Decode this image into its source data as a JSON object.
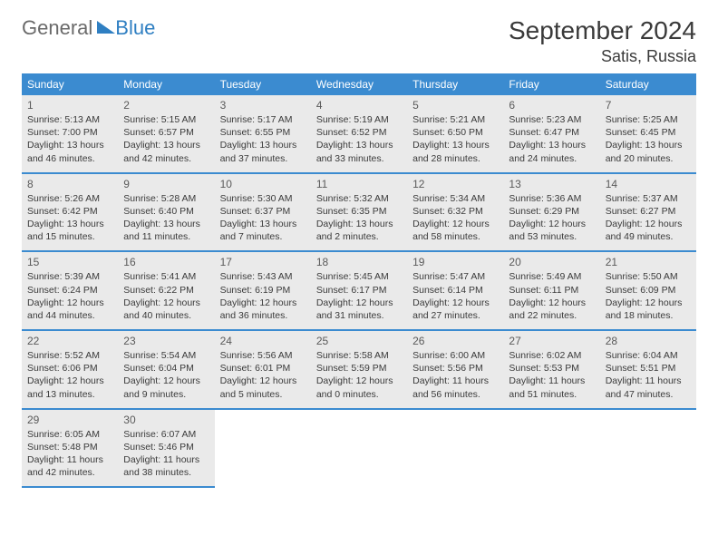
{
  "logo": {
    "general": "General",
    "blue": "Blue"
  },
  "header": {
    "title": "September 2024",
    "location": "Satis, Russia"
  },
  "weekdays": [
    "Sunday",
    "Monday",
    "Tuesday",
    "Wednesday",
    "Thursday",
    "Friday",
    "Saturday"
  ],
  "weeks": [
    [
      {
        "day": "1",
        "sunrise": "Sunrise: 5:13 AM",
        "sunset": "Sunset: 7:00 PM",
        "daylight1": "Daylight: 13 hours",
        "daylight2": "and 46 minutes."
      },
      {
        "day": "2",
        "sunrise": "Sunrise: 5:15 AM",
        "sunset": "Sunset: 6:57 PM",
        "daylight1": "Daylight: 13 hours",
        "daylight2": "and 42 minutes."
      },
      {
        "day": "3",
        "sunrise": "Sunrise: 5:17 AM",
        "sunset": "Sunset: 6:55 PM",
        "daylight1": "Daylight: 13 hours",
        "daylight2": "and 37 minutes."
      },
      {
        "day": "4",
        "sunrise": "Sunrise: 5:19 AM",
        "sunset": "Sunset: 6:52 PM",
        "daylight1": "Daylight: 13 hours",
        "daylight2": "and 33 minutes."
      },
      {
        "day": "5",
        "sunrise": "Sunrise: 5:21 AM",
        "sunset": "Sunset: 6:50 PM",
        "daylight1": "Daylight: 13 hours",
        "daylight2": "and 28 minutes."
      },
      {
        "day": "6",
        "sunrise": "Sunrise: 5:23 AM",
        "sunset": "Sunset: 6:47 PM",
        "daylight1": "Daylight: 13 hours",
        "daylight2": "and 24 minutes."
      },
      {
        "day": "7",
        "sunrise": "Sunrise: 5:25 AM",
        "sunset": "Sunset: 6:45 PM",
        "daylight1": "Daylight: 13 hours",
        "daylight2": "and 20 minutes."
      }
    ],
    [
      {
        "day": "8",
        "sunrise": "Sunrise: 5:26 AM",
        "sunset": "Sunset: 6:42 PM",
        "daylight1": "Daylight: 13 hours",
        "daylight2": "and 15 minutes."
      },
      {
        "day": "9",
        "sunrise": "Sunrise: 5:28 AM",
        "sunset": "Sunset: 6:40 PM",
        "daylight1": "Daylight: 13 hours",
        "daylight2": "and 11 minutes."
      },
      {
        "day": "10",
        "sunrise": "Sunrise: 5:30 AM",
        "sunset": "Sunset: 6:37 PM",
        "daylight1": "Daylight: 13 hours",
        "daylight2": "and 7 minutes."
      },
      {
        "day": "11",
        "sunrise": "Sunrise: 5:32 AM",
        "sunset": "Sunset: 6:35 PM",
        "daylight1": "Daylight: 13 hours",
        "daylight2": "and 2 minutes."
      },
      {
        "day": "12",
        "sunrise": "Sunrise: 5:34 AM",
        "sunset": "Sunset: 6:32 PM",
        "daylight1": "Daylight: 12 hours",
        "daylight2": "and 58 minutes."
      },
      {
        "day": "13",
        "sunrise": "Sunrise: 5:36 AM",
        "sunset": "Sunset: 6:29 PM",
        "daylight1": "Daylight: 12 hours",
        "daylight2": "and 53 minutes."
      },
      {
        "day": "14",
        "sunrise": "Sunrise: 5:37 AM",
        "sunset": "Sunset: 6:27 PM",
        "daylight1": "Daylight: 12 hours",
        "daylight2": "and 49 minutes."
      }
    ],
    [
      {
        "day": "15",
        "sunrise": "Sunrise: 5:39 AM",
        "sunset": "Sunset: 6:24 PM",
        "daylight1": "Daylight: 12 hours",
        "daylight2": "and 44 minutes."
      },
      {
        "day": "16",
        "sunrise": "Sunrise: 5:41 AM",
        "sunset": "Sunset: 6:22 PM",
        "daylight1": "Daylight: 12 hours",
        "daylight2": "and 40 minutes."
      },
      {
        "day": "17",
        "sunrise": "Sunrise: 5:43 AM",
        "sunset": "Sunset: 6:19 PM",
        "daylight1": "Daylight: 12 hours",
        "daylight2": "and 36 minutes."
      },
      {
        "day": "18",
        "sunrise": "Sunrise: 5:45 AM",
        "sunset": "Sunset: 6:17 PM",
        "daylight1": "Daylight: 12 hours",
        "daylight2": "and 31 minutes."
      },
      {
        "day": "19",
        "sunrise": "Sunrise: 5:47 AM",
        "sunset": "Sunset: 6:14 PM",
        "daylight1": "Daylight: 12 hours",
        "daylight2": "and 27 minutes."
      },
      {
        "day": "20",
        "sunrise": "Sunrise: 5:49 AM",
        "sunset": "Sunset: 6:11 PM",
        "daylight1": "Daylight: 12 hours",
        "daylight2": "and 22 minutes."
      },
      {
        "day": "21",
        "sunrise": "Sunrise: 5:50 AM",
        "sunset": "Sunset: 6:09 PM",
        "daylight1": "Daylight: 12 hours",
        "daylight2": "and 18 minutes."
      }
    ],
    [
      {
        "day": "22",
        "sunrise": "Sunrise: 5:52 AM",
        "sunset": "Sunset: 6:06 PM",
        "daylight1": "Daylight: 12 hours",
        "daylight2": "and 13 minutes."
      },
      {
        "day": "23",
        "sunrise": "Sunrise: 5:54 AM",
        "sunset": "Sunset: 6:04 PM",
        "daylight1": "Daylight: 12 hours",
        "daylight2": "and 9 minutes."
      },
      {
        "day": "24",
        "sunrise": "Sunrise: 5:56 AM",
        "sunset": "Sunset: 6:01 PM",
        "daylight1": "Daylight: 12 hours",
        "daylight2": "and 5 minutes."
      },
      {
        "day": "25",
        "sunrise": "Sunrise: 5:58 AM",
        "sunset": "Sunset: 5:59 PM",
        "daylight1": "Daylight: 12 hours",
        "daylight2": "and 0 minutes."
      },
      {
        "day": "26",
        "sunrise": "Sunrise: 6:00 AM",
        "sunset": "Sunset: 5:56 PM",
        "daylight1": "Daylight: 11 hours",
        "daylight2": "and 56 minutes."
      },
      {
        "day": "27",
        "sunrise": "Sunrise: 6:02 AM",
        "sunset": "Sunset: 5:53 PM",
        "daylight1": "Daylight: 11 hours",
        "daylight2": "and 51 minutes."
      },
      {
        "day": "28",
        "sunrise": "Sunrise: 6:04 AM",
        "sunset": "Sunset: 5:51 PM",
        "daylight1": "Daylight: 11 hours",
        "daylight2": "and 47 minutes."
      }
    ],
    [
      {
        "day": "29",
        "sunrise": "Sunrise: 6:05 AM",
        "sunset": "Sunset: 5:48 PM",
        "daylight1": "Daylight: 11 hours",
        "daylight2": "and 42 minutes."
      },
      {
        "day": "30",
        "sunrise": "Sunrise: 6:07 AM",
        "sunset": "Sunset: 5:46 PM",
        "daylight1": "Daylight: 11 hours",
        "daylight2": "and 38 minutes."
      },
      null,
      null,
      null,
      null,
      null
    ]
  ]
}
